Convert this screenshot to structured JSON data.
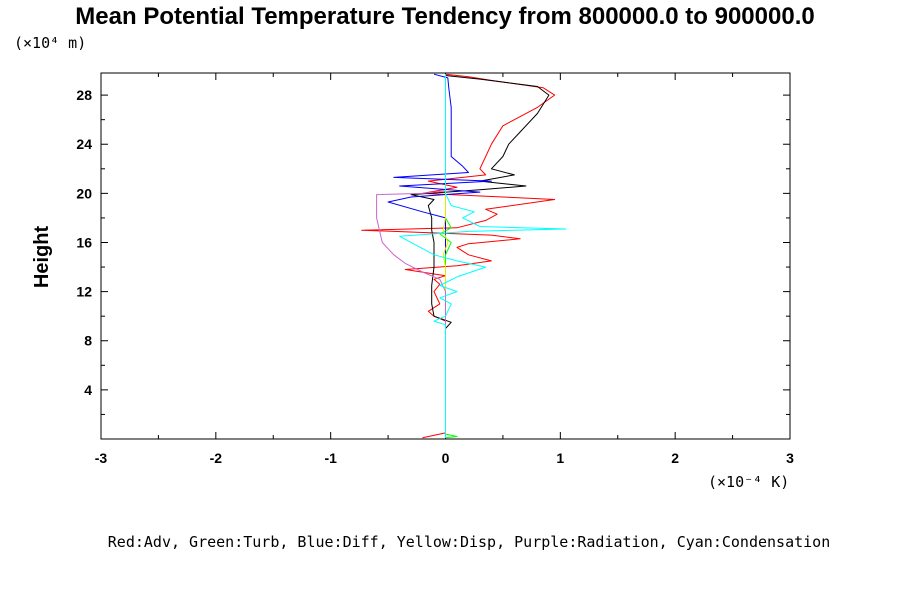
{
  "chart_data": {
    "type": "line",
    "title": "Mean Potential Temperature Tendency from 800000.0 to 900000.0",
    "ylabel": "Height",
    "y_unit_label": "(×10⁴ m)",
    "x_unit_label": "(×10⁻⁴ K)",
    "legend_text": "Red:Adv, Green:Turb, Blue:Diff, Yellow:Disp, Purple:Radiation, Cyan:Condensation",
    "xlim": [
      -3,
      3
    ],
    "ylim": [
      0,
      29.8
    ],
    "x_ticks": [
      -3,
      -2,
      -1,
      0,
      1,
      2,
      3
    ],
    "x_tick_labels": [
      "-3",
      "-2",
      "-1",
      "0",
      "1",
      "2",
      "3"
    ],
    "y_ticks": [
      4,
      8,
      12,
      16,
      20,
      24,
      28
    ],
    "y_tick_labels": [
      "4",
      "8",
      "12",
      "16",
      "20",
      "24",
      "28"
    ],
    "series": [
      {
        "color": "#ff0000",
        "points": [
          [
            -0.2,
            0.1
          ],
          [
            0.0,
            0.5
          ],
          [
            0.0,
            8.0
          ],
          [
            0.0,
            9.6
          ],
          [
            -0.1,
            10.0
          ],
          [
            -0.15,
            10.4
          ],
          [
            -0.05,
            11.0
          ],
          [
            -0.1,
            12.0
          ],
          [
            -0.05,
            12.6
          ],
          [
            -0.1,
            13.0
          ],
          [
            0.0,
            13.3
          ],
          [
            -0.35,
            13.8
          ],
          [
            0.1,
            14.1
          ],
          [
            0.4,
            14.5
          ],
          [
            0.2,
            15.0
          ],
          [
            0.1,
            15.6
          ],
          [
            0.2,
            15.9
          ],
          [
            0.65,
            16.3
          ],
          [
            0.4,
            16.6
          ],
          [
            -0.73,
            17.0
          ],
          [
            0.1,
            17.2
          ],
          [
            0.35,
            17.8
          ],
          [
            0.45,
            18.3
          ],
          [
            0.35,
            18.7
          ],
          [
            0.95,
            19.5
          ],
          [
            0.5,
            19.7
          ],
          [
            -0.2,
            20.0
          ],
          [
            0.1,
            20.5
          ],
          [
            -0.15,
            21.0
          ],
          [
            0.35,
            21.5
          ],
          [
            0.3,
            22.0
          ],
          [
            0.35,
            23.0
          ],
          [
            0.4,
            24.0
          ],
          [
            0.5,
            25.5
          ],
          [
            0.8,
            27.0
          ],
          [
            0.95,
            28.0
          ],
          [
            0.85,
            28.6
          ],
          [
            0.4,
            29.2
          ],
          [
            0.2,
            29.5
          ],
          [
            0.0,
            29.7
          ]
        ]
      },
      {
        "color": "#000000",
        "points": [
          [
            0.0,
            0.1
          ],
          [
            0.0,
            9.0
          ],
          [
            0.05,
            9.5
          ],
          [
            -0.1,
            10.0
          ],
          [
            -0.12,
            11.0
          ],
          [
            -0.12,
            12.5
          ],
          [
            -0.1,
            14.0
          ],
          [
            -0.1,
            16.0
          ],
          [
            -0.12,
            17.0
          ],
          [
            -0.12,
            18.0
          ],
          [
            -0.15,
            19.0
          ],
          [
            -0.1,
            19.5
          ],
          [
            -0.3,
            19.9
          ],
          [
            0.3,
            20.3
          ],
          [
            0.7,
            20.6
          ],
          [
            0.3,
            21.0
          ],
          [
            0.6,
            21.5
          ],
          [
            0.4,
            22.0
          ],
          [
            0.5,
            23.0
          ],
          [
            0.55,
            24.0
          ],
          [
            0.65,
            25.0
          ],
          [
            0.8,
            26.5
          ],
          [
            0.9,
            28.0
          ],
          [
            0.8,
            28.7
          ],
          [
            0.3,
            29.3
          ],
          [
            0.0,
            29.6
          ]
        ]
      },
      {
        "color": "#0000ff",
        "points": [
          [
            0.0,
            0.1
          ],
          [
            0.0,
            18.0
          ],
          [
            -0.2,
            18.5
          ],
          [
            -0.5,
            19.3
          ],
          [
            -0.3,
            19.7
          ],
          [
            0.3,
            20.1
          ],
          [
            -0.4,
            20.6
          ],
          [
            0.4,
            21.0
          ],
          [
            -0.45,
            21.3
          ],
          [
            0.2,
            21.7
          ],
          [
            0.15,
            22.2
          ],
          [
            0.05,
            23.0
          ],
          [
            0.05,
            25.0
          ],
          [
            0.05,
            27.0
          ],
          [
            0.03,
            28.5
          ],
          [
            0.02,
            29.4
          ],
          [
            -0.1,
            29.7
          ]
        ]
      },
      {
        "color": "#00ff00",
        "points": [
          [
            0.0,
            0.1
          ],
          [
            0.1,
            0.2
          ],
          [
            0.0,
            0.4
          ],
          [
            0.0,
            15.0
          ],
          [
            0.05,
            16.0
          ],
          [
            -0.05,
            16.7
          ],
          [
            0.05,
            17.2
          ],
          [
            0.0,
            18.0
          ],
          [
            0.0,
            29.7
          ]
        ]
      },
      {
        "color": "#e8e800",
        "points": [
          [
            0.0,
            0.1
          ],
          [
            0.0,
            14.0
          ],
          [
            -0.02,
            15.0
          ],
          [
            0.02,
            16.0
          ],
          [
            -0.02,
            17.0
          ],
          [
            0.0,
            18.0
          ],
          [
            0.0,
            29.7
          ]
        ]
      },
      {
        "color": "#cc66cc",
        "points": [
          [
            0.0,
            0.1
          ],
          [
            0.0,
            12.0
          ],
          [
            -0.05,
            13.0
          ],
          [
            -0.2,
            13.6
          ],
          [
            -0.35,
            14.3
          ],
          [
            -0.45,
            15.0
          ],
          [
            -0.55,
            16.0
          ],
          [
            -0.6,
            18.0
          ],
          [
            -0.6,
            19.9
          ],
          [
            -0.2,
            20.0
          ],
          [
            0.0,
            20.2
          ],
          [
            0.0,
            29.7
          ]
        ]
      },
      {
        "color": "#00ffff",
        "points": [
          [
            0.0,
            0.1
          ],
          [
            0.0,
            9.3
          ],
          [
            -0.1,
            9.6
          ],
          [
            0.0,
            10.0
          ],
          [
            0.05,
            11.0
          ],
          [
            -0.05,
            11.5
          ],
          [
            0.1,
            12.0
          ],
          [
            -0.05,
            12.5
          ],
          [
            0.1,
            13.2
          ],
          [
            0.35,
            14.0
          ],
          [
            0.1,
            14.5
          ],
          [
            -0.1,
            15.0
          ],
          [
            -0.2,
            15.5
          ],
          [
            -0.4,
            16.5
          ],
          [
            0.2,
            16.9
          ],
          [
            1.05,
            17.1
          ],
          [
            0.3,
            17.3
          ],
          [
            0.15,
            18.0
          ],
          [
            0.25,
            18.5
          ],
          [
            0.05,
            19.0
          ],
          [
            0.0,
            20.0
          ],
          [
            0.0,
            29.7
          ]
        ]
      }
    ]
  }
}
